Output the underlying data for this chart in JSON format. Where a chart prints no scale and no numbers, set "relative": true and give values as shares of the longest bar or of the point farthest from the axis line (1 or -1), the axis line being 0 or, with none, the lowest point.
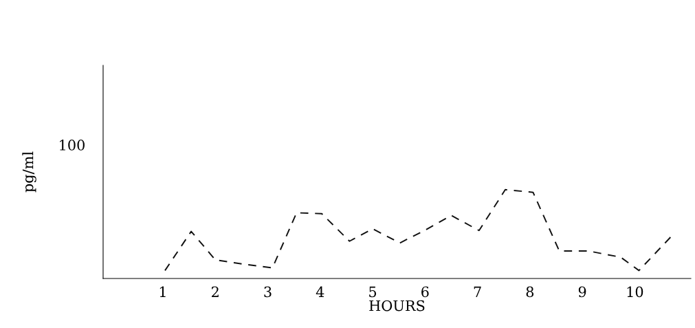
{
  "chart_data": {
    "type": "line",
    "relative": true,
    "xlabel": "HOURS",
    "ylabel": "pg/ml",
    "xlim": [
      -0.14,
      11.07
    ],
    "xticks": [
      1,
      2,
      3,
      4,
      5,
      6,
      7,
      8,
      9,
      10
    ],
    "annotations": [
      "100"
    ],
    "line_style": "dashed",
    "marker": "none",
    "grid": false,
    "series": [
      {
        "color": "#111111",
        "x": [
          1.04,
          1.54,
          2.0,
          2.55,
          3.09,
          3.55,
          4.03,
          4.56,
          5.0,
          5.52,
          6.02,
          6.5,
          7.03,
          7.53,
          8.06,
          8.56,
          9.11,
          9.73,
          10.08,
          10.69
        ],
        "values": [
          0.09,
          0.53,
          0.21,
          0.16,
          0.12,
          0.74,
          0.73,
          0.42,
          0.56,
          0.4,
          0.55,
          0.71,
          0.54,
          1.0,
          0.97,
          0.31,
          0.31,
          0.24,
          0.09,
          0.47
        ]
      }
    ]
  }
}
